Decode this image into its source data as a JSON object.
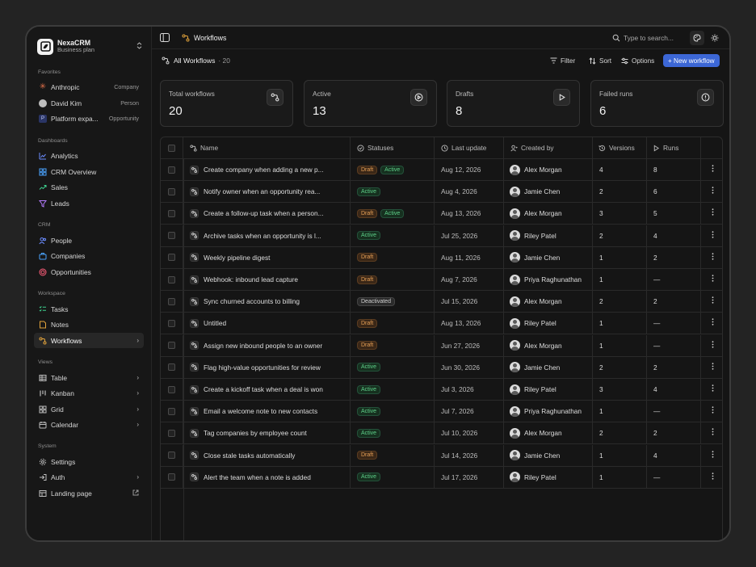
{
  "brand": {
    "name": "NexaCRM",
    "plan": "Business plan"
  },
  "sidebar": {
    "favorites_title": "Favorites",
    "favorites": [
      {
        "label": "Anthropic",
        "tag": "Company",
        "icon": "asterisk-icon"
      },
      {
        "label": "David Kim",
        "tag": "Person",
        "icon": "avatar"
      },
      {
        "label": "Platform expa...",
        "tag": "Opportunity",
        "icon": "p-badge",
        "badge_letter": "P"
      }
    ],
    "dashboards_title": "Dashboards",
    "dashboards": [
      {
        "label": "Analytics",
        "icon": "chart-icon"
      },
      {
        "label": "CRM Overview",
        "icon": "grid-icon"
      },
      {
        "label": "Sales",
        "icon": "trend-icon"
      },
      {
        "label": "Leads",
        "icon": "funnel-icon"
      }
    ],
    "crm_title": "CRM",
    "crm": [
      {
        "label": "People",
        "icon": "people-icon"
      },
      {
        "label": "Companies",
        "icon": "building-icon"
      },
      {
        "label": "Opportunities",
        "icon": "target-icon"
      }
    ],
    "workspace_title": "Workspace",
    "workspace": [
      {
        "label": "Tasks",
        "icon": "checklist-icon"
      },
      {
        "label": "Notes",
        "icon": "note-icon"
      },
      {
        "label": "Workflows",
        "icon": "workflow-icon",
        "active": true
      }
    ],
    "views_title": "Views",
    "views": [
      {
        "label": "Table",
        "icon": "table-icon"
      },
      {
        "label": "Kanban",
        "icon": "kanban-icon"
      },
      {
        "label": "Grid",
        "icon": "grid-icon"
      },
      {
        "label": "Calendar",
        "icon": "calendar-icon"
      }
    ],
    "system_title": "System",
    "system": [
      {
        "label": "Settings",
        "icon": "gear-icon"
      },
      {
        "label": "Auth",
        "icon": "auth-icon"
      },
      {
        "label": "Landing page",
        "icon": "layout-icon"
      }
    ]
  },
  "topbar": {
    "title": "Workflows",
    "search_placeholder": "Type to search..."
  },
  "viewbar": {
    "title": "All Workflows",
    "count": "· 20",
    "filter": "Filter",
    "sort": "Sort",
    "options": "Options",
    "new_button": "+ New workflow"
  },
  "cards": [
    {
      "title": "Total workflows",
      "value": "20",
      "icon": "workflow-icon"
    },
    {
      "title": "Active",
      "value": "13",
      "icon": "play-circle-icon"
    },
    {
      "title": "Drafts",
      "value": "8",
      "icon": "play-square-icon"
    },
    {
      "title": "Failed runs",
      "value": "6",
      "icon": "alert-icon"
    }
  ],
  "table": {
    "columns": [
      "Name",
      "Statuses",
      "Last update",
      "Created by",
      "Versions",
      "Runs"
    ],
    "rows": [
      {
        "name": "Create company when adding a new p...",
        "statuses": [
          "Draft",
          "Active"
        ],
        "updated": "Aug 12, 2026",
        "creator": "Alex Morgan",
        "versions": "4",
        "runs": "8"
      },
      {
        "name": "Notify owner when an opportunity rea...",
        "statuses": [
          "Active"
        ],
        "updated": "Aug 4, 2026",
        "creator": "Jamie Chen",
        "versions": "2",
        "runs": "6"
      },
      {
        "name": "Create a follow-up task when a person...",
        "statuses": [
          "Draft",
          "Active"
        ],
        "updated": "Aug 13, 2026",
        "creator": "Alex Morgan",
        "versions": "3",
        "runs": "5"
      },
      {
        "name": "Archive tasks when an opportunity is l...",
        "statuses": [
          "Active"
        ],
        "updated": "Jul 25, 2026",
        "creator": "Riley Patel",
        "versions": "2",
        "runs": "4"
      },
      {
        "name": "Weekly pipeline digest",
        "statuses": [
          "Draft"
        ],
        "updated": "Aug 11, 2026",
        "creator": "Jamie Chen",
        "versions": "1",
        "runs": "2"
      },
      {
        "name": "Webhook: inbound lead capture",
        "statuses": [
          "Draft"
        ],
        "updated": "Aug 7, 2026",
        "creator": "Priya Raghunathan",
        "versions": "1",
        "runs": "—"
      },
      {
        "name": "Sync churned accounts to billing",
        "statuses": [
          "Deactivated"
        ],
        "updated": "Jul 15, 2026",
        "creator": "Alex Morgan",
        "versions": "2",
        "runs": "2"
      },
      {
        "name": "Untitled",
        "statuses": [
          "Draft"
        ],
        "updated": "Aug 13, 2026",
        "creator": "Riley Patel",
        "versions": "1",
        "runs": "—"
      },
      {
        "name": "Assign new inbound people to an owner",
        "statuses": [
          "Draft"
        ],
        "updated": "Jun 27, 2026",
        "creator": "Alex Morgan",
        "versions": "1",
        "runs": "—"
      },
      {
        "name": "Flag high-value opportunities for review",
        "statuses": [
          "Active"
        ],
        "updated": "Jun 30, 2026",
        "creator": "Jamie Chen",
        "versions": "2",
        "runs": "2"
      },
      {
        "name": "Create a kickoff task when a deal is won",
        "statuses": [
          "Active"
        ],
        "updated": "Jul 3, 2026",
        "creator": "Riley Patel",
        "versions": "3",
        "runs": "4"
      },
      {
        "name": "Email a welcome note to new contacts",
        "statuses": [
          "Active"
        ],
        "updated": "Jul 7, 2026",
        "creator": "Priya Raghunathan",
        "versions": "1",
        "runs": "—"
      },
      {
        "name": "Tag companies by employee count",
        "statuses": [
          "Active"
        ],
        "updated": "Jul 10, 2026",
        "creator": "Alex Morgan",
        "versions": "2",
        "runs": "2"
      },
      {
        "name": "Close stale tasks automatically",
        "statuses": [
          "Draft"
        ],
        "updated": "Jul 14, 2026",
        "creator": "Jamie Chen",
        "versions": "1",
        "runs": "4"
      },
      {
        "name": "Alert the team when a note is added",
        "statuses": [
          "Active"
        ],
        "updated": "Jul 17, 2026",
        "creator": "Riley Patel",
        "versions": "1",
        "runs": "—"
      }
    ]
  },
  "colors": {
    "accent": "#3c67d6",
    "workflow_icon": "#e2a33b",
    "draft": "#e6a056",
    "active": "#5fd08a"
  }
}
